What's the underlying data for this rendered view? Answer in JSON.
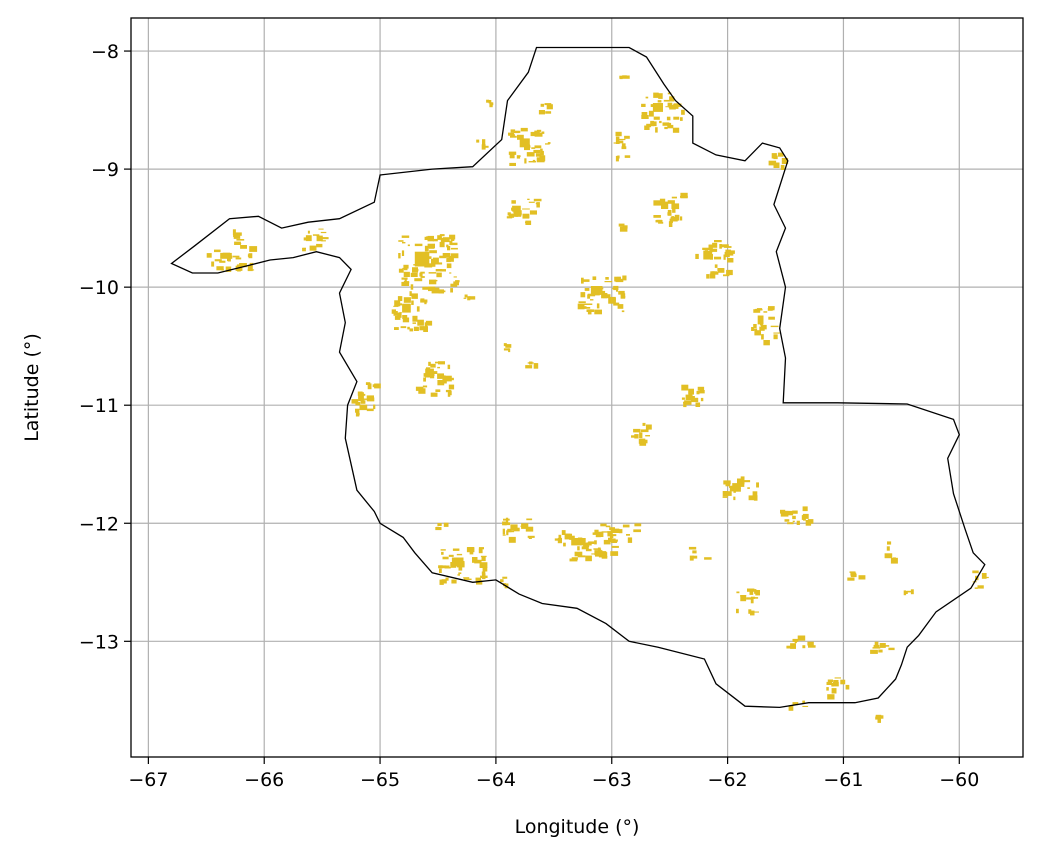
{
  "chart_data": {
    "type": "map",
    "xlabel": "Longitude (°)",
    "ylabel": "Latitude (°)",
    "xlim": [
      -67.15,
      -59.45
    ],
    "ylim": [
      -13.98,
      -7.72
    ],
    "xticks": [
      -67,
      -66,
      -65,
      -64,
      -63,
      -62,
      -61,
      -60
    ],
    "yticks": [
      -8,
      -9,
      -10,
      -11,
      -12,
      -13
    ],
    "xtick_labels": [
      "−67",
      "−66",
      "−65",
      "−64",
      "−63",
      "−62",
      "−61",
      "−60"
    ],
    "ytick_labels": [
      "−8",
      "−9",
      "−10",
      "−11",
      "−12",
      "−13"
    ],
    "grid": true,
    "colors": {
      "patch": "#e2bf24",
      "boundary": "#000000",
      "grid": "#b0b0b0"
    },
    "boundary_lonlat": [
      [
        -63.65,
        -7.97
      ],
      [
        -62.85,
        -7.97
      ],
      [
        -62.7,
        -8.05
      ],
      [
        -62.55,
        -8.28
      ],
      [
        -62.45,
        -8.42
      ],
      [
        -62.3,
        -8.55
      ],
      [
        -62.3,
        -8.78
      ],
      [
        -62.1,
        -8.88
      ],
      [
        -61.85,
        -8.93
      ],
      [
        -61.7,
        -8.78
      ],
      [
        -61.55,
        -8.82
      ],
      [
        -61.48,
        -8.93
      ],
      [
        -61.6,
        -9.3
      ],
      [
        -61.5,
        -9.5
      ],
      [
        -61.58,
        -9.7
      ],
      [
        -61.5,
        -10.0
      ],
      [
        -61.55,
        -10.35
      ],
      [
        -61.5,
        -10.6
      ],
      [
        -61.52,
        -10.98
      ],
      [
        -61.05,
        -10.98
      ],
      [
        -60.45,
        -10.99
      ],
      [
        -60.05,
        -11.12
      ],
      [
        -60.0,
        -11.25
      ],
      [
        -60.1,
        -11.45
      ],
      [
        -60.05,
        -11.75
      ],
      [
        -59.95,
        -12.05
      ],
      [
        -59.88,
        -12.25
      ],
      [
        -59.78,
        -12.35
      ],
      [
        -59.9,
        -12.55
      ],
      [
        -60.2,
        -12.75
      ],
      [
        -60.35,
        -12.95
      ],
      [
        -60.45,
        -13.05
      ],
      [
        -60.5,
        -13.2
      ],
      [
        -60.55,
        -13.32
      ],
      [
        -60.7,
        -13.48
      ],
      [
        -60.9,
        -13.52
      ],
      [
        -61.1,
        -13.52
      ],
      [
        -61.3,
        -13.52
      ],
      [
        -61.55,
        -13.56
      ],
      [
        -61.85,
        -13.55
      ],
      [
        -62.1,
        -13.36
      ],
      [
        -62.2,
        -13.15
      ],
      [
        -62.6,
        -13.05
      ],
      [
        -62.85,
        -13.0
      ],
      [
        -63.05,
        -12.85
      ],
      [
        -63.3,
        -12.72
      ],
      [
        -63.6,
        -12.68
      ],
      [
        -63.8,
        -12.6
      ],
      [
        -64.0,
        -12.48
      ],
      [
        -64.2,
        -12.5
      ],
      [
        -64.55,
        -12.42
      ],
      [
        -64.7,
        -12.25
      ],
      [
        -64.8,
        -12.12
      ],
      [
        -65.0,
        -12.0
      ],
      [
        -65.05,
        -11.9
      ],
      [
        -65.2,
        -11.72
      ],
      [
        -65.25,
        -11.5
      ],
      [
        -65.3,
        -11.28
      ],
      [
        -65.28,
        -11.0
      ],
      [
        -65.2,
        -10.8
      ],
      [
        -65.35,
        -10.55
      ],
      [
        -65.3,
        -10.3
      ],
      [
        -65.35,
        -10.05
      ],
      [
        -65.25,
        -9.85
      ],
      [
        -65.35,
        -9.75
      ],
      [
        -65.55,
        -9.7
      ],
      [
        -65.75,
        -9.75
      ],
      [
        -65.95,
        -9.77
      ],
      [
        -66.15,
        -9.82
      ],
      [
        -66.4,
        -9.88
      ],
      [
        -66.62,
        -9.88
      ],
      [
        -66.8,
        -9.8
      ],
      [
        -66.6,
        -9.65
      ],
      [
        -66.3,
        -9.42
      ],
      [
        -66.05,
        -9.4
      ],
      [
        -65.85,
        -9.5
      ],
      [
        -65.62,
        -9.45
      ],
      [
        -65.35,
        -9.42
      ],
      [
        -65.05,
        -9.28
      ],
      [
        -65.0,
        -9.05
      ],
      [
        -64.55,
        -9.0
      ],
      [
        -64.2,
        -8.98
      ],
      [
        -63.95,
        -8.75
      ],
      [
        -63.9,
        -8.42
      ],
      [
        -63.72,
        -8.18
      ],
      [
        -63.65,
        -7.97
      ]
    ],
    "patches_lonlat": [
      [
        -63.65,
        -8.42,
        0.12,
        0.09
      ],
      [
        -64.1,
        -8.4,
        0.05,
        0.04
      ],
      [
        -62.95,
        -8.2,
        0.05,
        0.03
      ],
      [
        -62.75,
        -8.35,
        0.35,
        0.3
      ],
      [
        -63.0,
        -8.65,
        0.12,
        0.25
      ],
      [
        -61.65,
        -8.85,
        0.15,
        0.12
      ],
      [
        -64.2,
        -8.72,
        0.1,
        0.1
      ],
      [
        -63.9,
        -8.65,
        0.35,
        0.3
      ],
      [
        -63.0,
        -9.45,
        0.2,
        0.04
      ],
      [
        -66.3,
        -9.45,
        0.1,
        0.2
      ],
      [
        -65.7,
        -9.5,
        0.2,
        0.2
      ],
      [
        -66.5,
        -9.65,
        0.4,
        0.2
      ],
      [
        -64.85,
        -9.55,
        0.5,
        0.5
      ],
      [
        -64.3,
        -10.05,
        0.1,
        0.04
      ],
      [
        -63.75,
        -10.6,
        0.12,
        0.1
      ],
      [
        -63.95,
        -10.45,
        0.06,
        0.08
      ],
      [
        -62.85,
        -11.2,
        0.15,
        0.15
      ],
      [
        -62.75,
        -11.12,
        0.05,
        0.1
      ],
      [
        -64.55,
        -11.98,
        0.15,
        0.06
      ],
      [
        -64.5,
        -12.2,
        0.4,
        0.3
      ],
      [
        -64.0,
        -12.45,
        0.12,
        0.08
      ],
      [
        -63.95,
        -11.95,
        0.25,
        0.2
      ],
      [
        -63.5,
        -12.05,
        0.5,
        0.25
      ],
      [
        -63.1,
        -12.0,
        0.3,
        0.15
      ],
      [
        -62.35,
        -12.2,
        0.15,
        0.1
      ],
      [
        -61.95,
        -12.55,
        0.2,
        0.2
      ],
      [
        -61.0,
        -12.4,
        0.2,
        0.06
      ],
      [
        -60.65,
        -12.15,
        0.08,
        0.15
      ],
      [
        -60.5,
        -12.55,
        0.1,
        0.08
      ],
      [
        -59.9,
        -12.4,
        0.12,
        0.15
      ],
      [
        -61.5,
        -12.95,
        0.2,
        0.1
      ],
      [
        -60.8,
        -13.0,
        0.2,
        0.1
      ],
      [
        -61.5,
        -13.5,
        0.2,
        0.05
      ],
      [
        -60.75,
        -13.62,
        0.08,
        0.06
      ],
      [
        -61.15,
        -13.3,
        0.2,
        0.15
      ],
      [
        -61.6,
        -11.85,
        0.3,
        0.15
      ],
      [
        -62.05,
        -11.6,
        0.3,
        0.2
      ],
      [
        -62.4,
        -10.8,
        0.2,
        0.2
      ],
      [
        -61.8,
        -10.15,
        0.2,
        0.3
      ],
      [
        -64.9,
        -10.05,
        0.3,
        0.3
      ],
      [
        -63.3,
        -9.9,
        0.4,
        0.3
      ],
      [
        -62.3,
        -9.6,
        0.3,
        0.3
      ],
      [
        -64.7,
        -10.6,
        0.3,
        0.3
      ],
      [
        -65.25,
        -10.8,
        0.2,
        0.3
      ],
      [
        -62.65,
        -9.2,
        0.25,
        0.25
      ],
      [
        -63.95,
        -9.25,
        0.3,
        0.2
      ]
    ]
  }
}
